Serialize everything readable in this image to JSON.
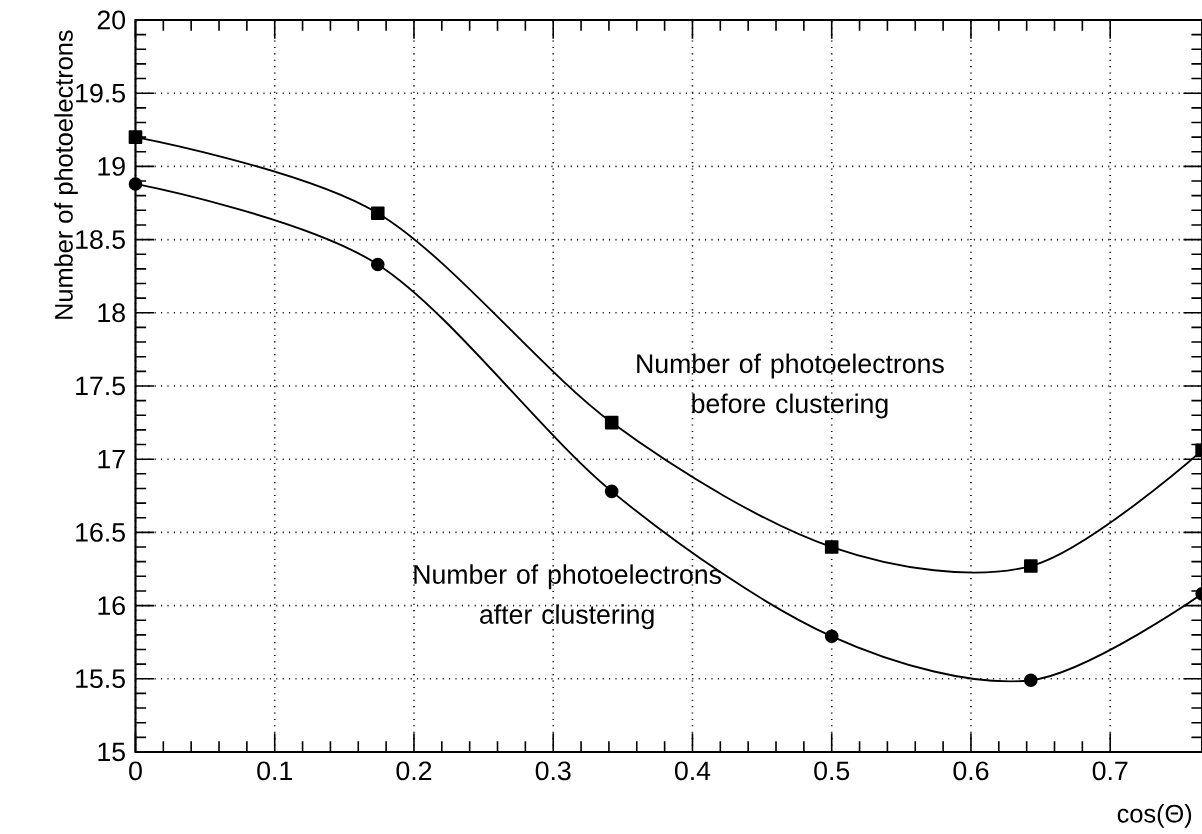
{
  "chart_data": {
    "type": "line",
    "xlabel": "cos(Θ)",
    "ylabel": "Number of photoelectrons",
    "x": [
      0,
      0.174,
      0.342,
      0.5,
      0.643,
      0.766
    ],
    "series": [
      {
        "name": "Number of photoelectrons before clustering",
        "color": "#000000",
        "marker": "square",
        "values": [
          19.2,
          18.68,
          17.25,
          16.4,
          16.27,
          17.06
        ]
      },
      {
        "name": "Number of photoelectrons after clustering",
        "color": "#000000",
        "marker": "circle",
        "values": [
          18.88,
          18.33,
          16.78,
          15.79,
          15.49,
          16.08
        ]
      }
    ],
    "xlim": [
      0,
      0.766
    ],
    "ylim": [
      15,
      20
    ],
    "xticks": [
      0,
      0.1,
      0.2,
      0.3,
      0.4,
      0.5,
      0.6,
      0.7
    ],
    "yticks": [
      15,
      15.5,
      16,
      16.5,
      17,
      17.5,
      18,
      18.5,
      19,
      19.5,
      20
    ],
    "grid": true,
    "line_style": "solid"
  }
}
